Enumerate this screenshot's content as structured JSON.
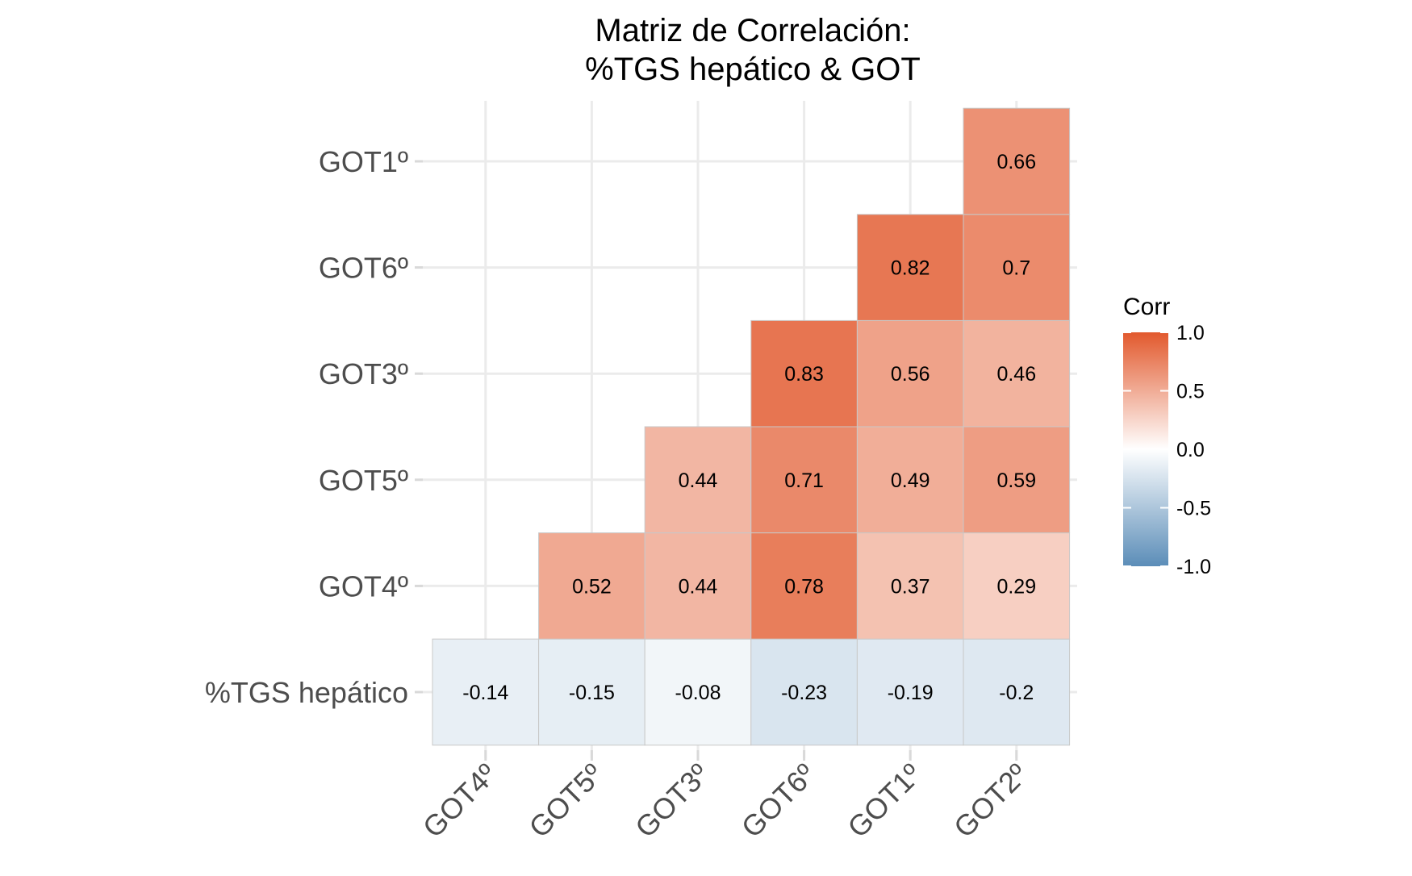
{
  "chart_data": {
    "type": "heatmap",
    "title": [
      "Matriz de Correlación:",
      "%TGS hepático & GOT"
    ],
    "x_categories": [
      "GOT4º",
      "GOT5º",
      "GOT3º",
      "GOT6º",
      "GOT1º",
      "GOT2º"
    ],
    "y_categories": [
      "%TGS hepático",
      "GOT4º",
      "GOT5º",
      "GOT3º",
      "GOT6º",
      "GOT1º"
    ],
    "cells": [
      {
        "x": "GOT4º",
        "y": "%TGS hepático",
        "value": -0.14,
        "label": "-0.14"
      },
      {
        "x": "GOT5º",
        "y": "%TGS hepático",
        "value": -0.15,
        "label": "-0.15"
      },
      {
        "x": "GOT3º",
        "y": "%TGS hepático",
        "value": -0.08,
        "label": "-0.08"
      },
      {
        "x": "GOT6º",
        "y": "%TGS hepático",
        "value": -0.23,
        "label": "-0.23"
      },
      {
        "x": "GOT1º",
        "y": "%TGS hepático",
        "value": -0.19,
        "label": "-0.19"
      },
      {
        "x": "GOT2º",
        "y": "%TGS hepático",
        "value": -0.2,
        "label": "-0.2"
      },
      {
        "x": "GOT5º",
        "y": "GOT4º",
        "value": 0.52,
        "label": "0.52"
      },
      {
        "x": "GOT3º",
        "y": "GOT4º",
        "value": 0.44,
        "label": "0.44"
      },
      {
        "x": "GOT6º",
        "y": "GOT4º",
        "value": 0.78,
        "label": "0.78"
      },
      {
        "x": "GOT1º",
        "y": "GOT4º",
        "value": 0.37,
        "label": "0.37"
      },
      {
        "x": "GOT2º",
        "y": "GOT4º",
        "value": 0.29,
        "label": "0.29"
      },
      {
        "x": "GOT3º",
        "y": "GOT5º",
        "value": 0.44,
        "label": "0.44"
      },
      {
        "x": "GOT6º",
        "y": "GOT5º",
        "value": 0.71,
        "label": "0.71"
      },
      {
        "x": "GOT1º",
        "y": "GOT5º",
        "value": 0.49,
        "label": "0.49"
      },
      {
        "x": "GOT2º",
        "y": "GOT5º",
        "value": 0.59,
        "label": "0.59"
      },
      {
        "x": "GOT6º",
        "y": "GOT3º",
        "value": 0.83,
        "label": "0.83"
      },
      {
        "x": "GOT1º",
        "y": "GOT3º",
        "value": 0.56,
        "label": "0.56"
      },
      {
        "x": "GOT2º",
        "y": "GOT3º",
        "value": 0.46,
        "label": "0.46"
      },
      {
        "x": "GOT1º",
        "y": "GOT6º",
        "value": 0.82,
        "label": "0.82"
      },
      {
        "x": "GOT2º",
        "y": "GOT6º",
        "value": 0.7,
        "label": "0.7"
      },
      {
        "x": "GOT2º",
        "y": "GOT1º",
        "value": 0.66,
        "label": "0.66"
      }
    ],
    "legend": {
      "title": "Corr",
      "range": [
        -1,
        1
      ],
      "ticks": [
        1.0,
        0.5,
        0.0,
        -0.5,
        -1.0
      ],
      "tick_labels": [
        "1.0",
        "0.5",
        "0.0",
        "-0.5",
        "-1.0"
      ],
      "placement": "right"
    },
    "colors": {
      "low": "#5b8db8",
      "mid": "#ffffff",
      "high": "#e2592d",
      "grid": "#ebebeb",
      "tick": "#d9d9d9",
      "cell_border": "#c8c8c8"
    },
    "x_axis_label_rotation_deg": -45,
    "grid": true
  }
}
